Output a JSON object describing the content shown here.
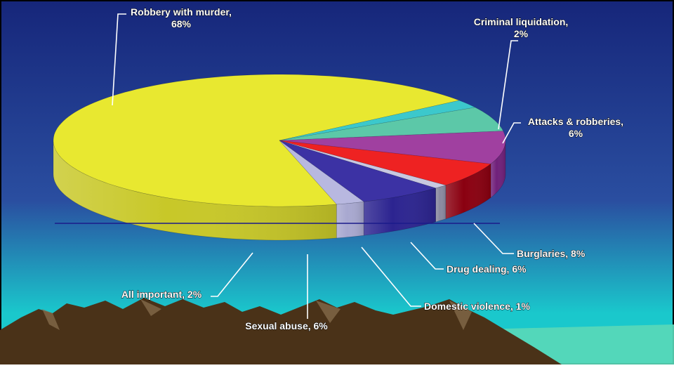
{
  "chart_data": {
    "type": "pie",
    "title": "",
    "style": "3d-exploded-pie",
    "categories": [
      "Robbery with murder",
      "Criminal liquidation",
      "Attacks & robberies",
      "Burglaries",
      "Drug dealing",
      "Domestic  violence",
      "Sexual abuse",
      "All important"
    ],
    "values": [
      68,
      2,
      6,
      8,
      6,
      1,
      6,
      2
    ],
    "unit": "%",
    "labels": [
      [
        "Robbery with murder,",
        "68%"
      ],
      [
        "Criminal liquidation,",
        "2%"
      ],
      [
        "Attacks & robberies,",
        "6%"
      ],
      [
        "Burglaries, 8%"
      ],
      [
        "Drug dealing, 6%"
      ],
      [
        "Domestic  violence, 1%"
      ],
      [
        "Sexual abuse, 6%"
      ],
      [
        "All important, 2%"
      ]
    ],
    "colors": [
      "#e8e830",
      "#3cc8cc",
      "#5cc8a8",
      "#a040a0",
      "#ee2222",
      "#c8c8e0",
      "#3c32a4",
      "#b8b8e0"
    ],
    "side_colors": [
      "#c8c828",
      "#2ca8a8",
      "#1a7a60",
      "#70207a",
      "#8a0010",
      "#8a8aa0",
      "#2c2490",
      "#a8a8d0"
    ],
    "legend": "none"
  },
  "background": {
    "sky_top": "#16267a",
    "sky_mid": "#2a4ea0",
    "horizon": "#1ac8cc",
    "mountains": "#4a3218",
    "label_color": "#ffffff"
  }
}
